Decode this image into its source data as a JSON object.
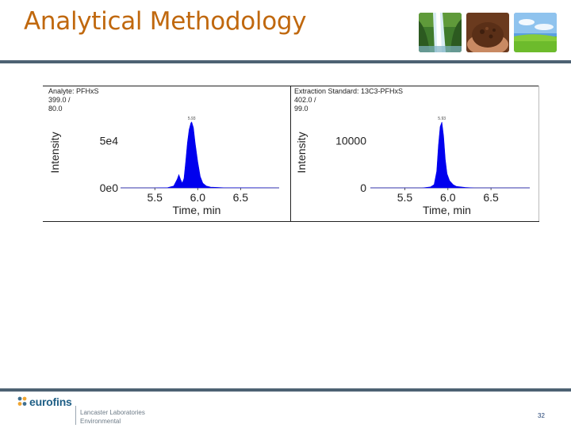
{
  "slide": {
    "title": "Analytical Methodology",
    "page_number": "32"
  },
  "images": [
    {
      "name": "waterfall-photo"
    },
    {
      "name": "soil-in-hands-photo"
    },
    {
      "name": "grass-field-photo"
    }
  ],
  "footer": {
    "logo_text": "eurofins",
    "lab_line1": "Lancaster Laboratories",
    "lab_line2": "Environmental"
  },
  "colors": {
    "title": "#c0680e",
    "rule": "#4d6273",
    "peak_fill": "#0000ee",
    "logo": "#1f5f86"
  },
  "chart_data": [
    {
      "type": "area",
      "header_line1": "Analyte: PFHxS",
      "header_line2": "399.0 /",
      "header_line3": "80.0",
      "xlabel": "Time, min",
      "ylabel": "Intensity",
      "xlim": [
        5.1,
        6.95
      ],
      "ylim": [
        0,
        75000
      ],
      "xticks": [
        "5.5",
        "6.0",
        "6.5"
      ],
      "yticks": [
        {
          "value": 0,
          "label": "0e0"
        },
        {
          "value": 50000,
          "label": "5e4"
        }
      ],
      "peak_annotation": "5.93",
      "series": [
        {
          "x": [
            5.1,
            5.5,
            5.65,
            5.72,
            5.76,
            5.78,
            5.8,
            5.82,
            5.84,
            5.86,
            5.88,
            5.9,
            5.92,
            5.93,
            5.95,
            5.97,
            6.0,
            6.03,
            6.06,
            6.1,
            6.15,
            6.3,
            6.95
          ],
          "values": [
            0,
            0,
            300,
            2000,
            9000,
            14000,
            9000,
            5000,
            10000,
            28000,
            48000,
            62000,
            69000,
            70000,
            64000,
            48000,
            28000,
            12000,
            5000,
            2000,
            800,
            200,
            0
          ]
        }
      ]
    },
    {
      "type": "area",
      "header_line1": "Extraction Standard: 13C3-PFHxS",
      "header_line2": "402.0 /",
      "header_line3": "99.0",
      "xlabel": "Time, min",
      "ylabel": "Intensity",
      "xlim": [
        5.1,
        6.95
      ],
      "ylim": [
        0,
        15000
      ],
      "xticks": [
        "5.5",
        "6.0",
        "6.5"
      ],
      "yticks": [
        {
          "value": 0,
          "label": "0"
        },
        {
          "value": 10000,
          "label": "10000"
        }
      ],
      "peak_annotation": "5.93",
      "series": [
        {
          "x": [
            5.1,
            5.7,
            5.8,
            5.84,
            5.87,
            5.89,
            5.91,
            5.93,
            5.95,
            5.97,
            5.99,
            6.02,
            6.06,
            6.1,
            6.2,
            6.3,
            6.95
          ],
          "values": [
            0,
            0,
            200,
            700,
            3500,
            9000,
            13000,
            14000,
            11000,
            6000,
            3000,
            1500,
            700,
            300,
            100,
            0,
            0
          ]
        }
      ]
    }
  ]
}
